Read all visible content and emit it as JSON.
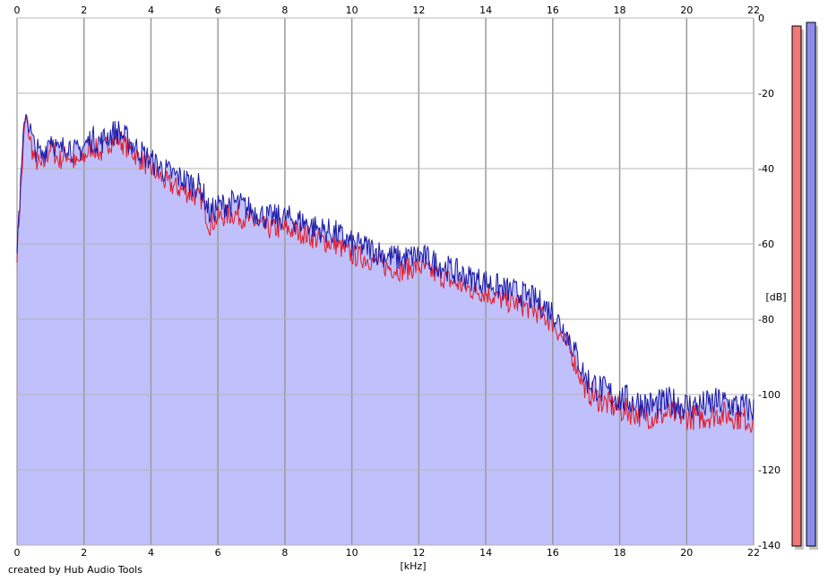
{
  "footer": {
    "credit": "created by Hub Audio Tools"
  },
  "chart_data": {
    "type": "area",
    "xlabel": "[kHz]",
    "ylabel": "[dB]",
    "xlim": [
      0,
      22
    ],
    "ylim": [
      -140,
      0
    ],
    "x_ticks": [
      "0",
      "2",
      "4",
      "6",
      "8",
      "10",
      "12",
      "14",
      "16",
      "18",
      "20",
      "22"
    ],
    "y_ticks": [
      "0",
      "-20",
      "-40",
      "-60",
      "-80",
      "-100",
      "-120",
      "-140"
    ],
    "grid": true,
    "legend": "none",
    "colors": {
      "fill": "#c0c0fc",
      "channel_1": "#e31b2a",
      "channel_2": "#1a1aa8",
      "grid": "#9a9a9a",
      "meter_1": "#f07878",
      "meter_2": "#8c8cf0"
    },
    "x": [
      0,
      0.25,
      0.5,
      0.75,
      1,
      1.25,
      1.5,
      1.75,
      2,
      2.25,
      2.5,
      2.75,
      3,
      3.25,
      3.5,
      3.75,
      4,
      4.5,
      5,
      5.5,
      5.75,
      6,
      6.5,
      7,
      7.5,
      8,
      8.5,
      9,
      9.5,
      10,
      10.5,
      11,
      11.5,
      12,
      12.5,
      13,
      13.5,
      14,
      14.5,
      15,
      15.5,
      16,
      16.5,
      17,
      17.5,
      18,
      18.5,
      19,
      19.5,
      20,
      20.5,
      21,
      21.5,
      22
    ],
    "series": [
      {
        "values": [
          -62,
          -26,
          -37,
          -40,
          -34,
          -38,
          -36,
          -39,
          -37,
          -34,
          -36,
          -33,
          -32,
          -34,
          -36,
          -38,
          -40,
          -44,
          -46,
          -48,
          -55,
          -53,
          -52,
          -54,
          -56,
          -56,
          -57,
          -59,
          -60,
          -63,
          -64,
          -66,
          -67,
          -66,
          -68,
          -70,
          -72,
          -73,
          -75,
          -76,
          -78,
          -81,
          -88,
          -99,
          -102,
          -104,
          -105,
          -106,
          -105,
          -106,
          -106,
          -105,
          -106,
          -107
        ]
      },
      {
        "values": [
          -60,
          -24,
          -34,
          -37,
          -31,
          -36,
          -33,
          -36,
          -34,
          -32,
          -33,
          -31,
          -30,
          -32,
          -34,
          -36,
          -38,
          -41,
          -43,
          -45,
          -52,
          -50,
          -49,
          -51,
          -53,
          -53,
          -54,
          -56,
          -57,
          -60,
          -61,
          -63,
          -64,
          -63,
          -65,
          -67,
          -69,
          -70,
          -72,
          -73,
          -75,
          -78,
          -85,
          -96,
          -99,
          -101,
          -102,
          -103,
          -102,
          -103,
          -103,
          -102,
          -103,
          -104
        ]
      }
    ]
  }
}
